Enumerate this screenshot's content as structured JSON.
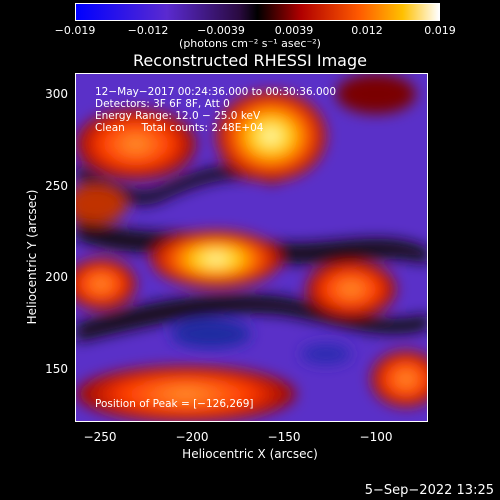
{
  "colorbar": {
    "ticks": [
      "−0.019",
      "−0.012",
      "−0.0039",
      "0.0039",
      "0.012",
      "0.019"
    ],
    "units": "(photons cm⁻² s⁻¹ asec⁻²)"
  },
  "plot": {
    "title": "Reconstructed RHESSI Image",
    "xlabel": "Heliocentric X (arcsec)",
    "ylabel": "Heliocentric Y (arcsec)",
    "xticks": [
      "−250",
      "−200",
      "−150",
      "−100"
    ],
    "yticks": [
      "300",
      "250",
      "200",
      "150"
    ],
    "info_lines": [
      "12−May−2017 00:24:36.000 to 00:30:36.000",
      "Detectors: 3F 6F 8F, Att 0",
      "Energy Range: 12.0 − 25.0 keV",
      "Clean     Total counts: 2.48E+04"
    ],
    "peak_text": "Position of Peak = [−126,269]"
  },
  "footer": {
    "date": "5−Sep−2022 13:25"
  }
}
